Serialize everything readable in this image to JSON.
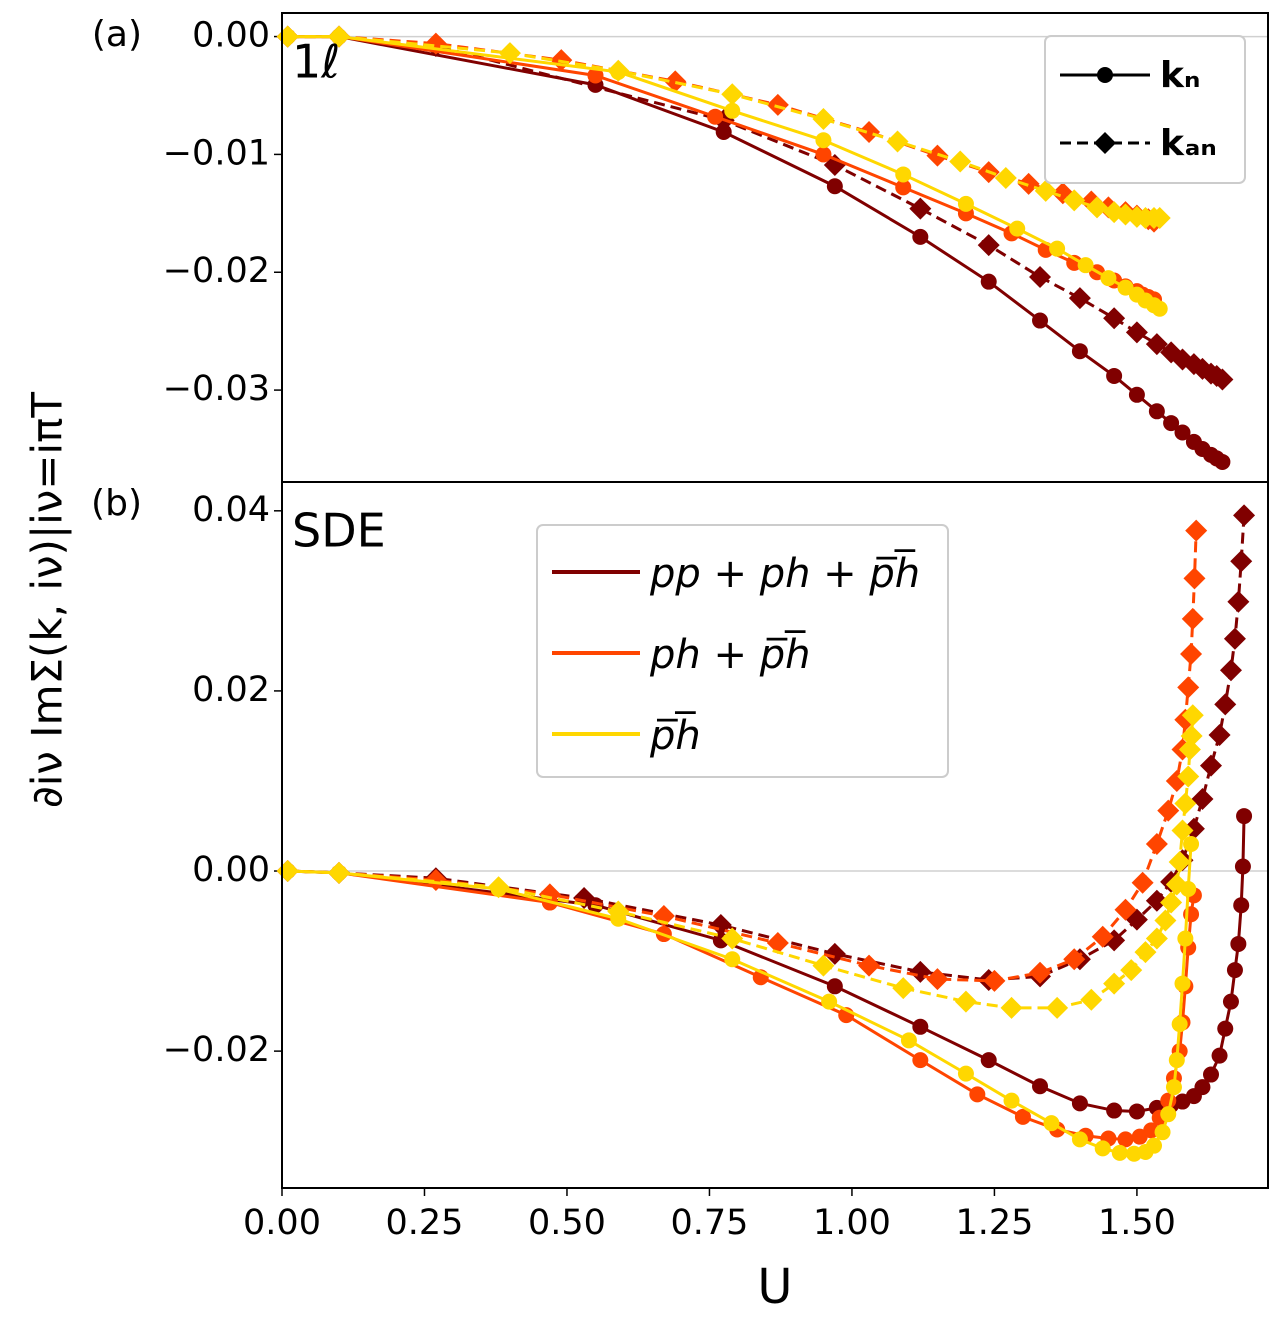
{
  "chart_data": [
    {
      "type": "line",
      "panel_label": "(a)",
      "annotation": "1ℓ",
      "ylabel": "∂iν ImΣ(k, iν)|iν=iπT",
      "xlim": [
        0,
        1.73
      ],
      "ylim": [
        -0.0378,
        0.002
      ],
      "yticks": [
        {
          "value": 0,
          "label": "0.00"
        },
        {
          "value": -0.01,
          "label": "−0.01"
        },
        {
          "value": -0.02,
          "label": "−0.02"
        },
        {
          "value": -0.03,
          "label": "−0.03"
        }
      ],
      "hline": 0,
      "legend": [
        {
          "label": "kₙ",
          "line": "solid",
          "marker": "circle"
        },
        {
          "label": "kₐₙ",
          "line": "dashed",
          "marker": "diamond"
        }
      ],
      "series": [
        {
          "color": "#800000",
          "line": "solid",
          "marker": "circle",
          "x": [
            0.01,
            0.1,
            0.55,
            0.775,
            0.97,
            1.12,
            1.24,
            1.33,
            1.4,
            1.46,
            1.5,
            1.535,
            1.56,
            1.58,
            1.6,
            1.615,
            1.63,
            1.64,
            1.65
          ],
          "values": [
            0,
            0,
            -0.0041,
            -0.0081,
            -0.0127,
            -0.017,
            -0.0208,
            -0.0241,
            -0.0267,
            -0.0288,
            -0.0304,
            -0.0318,
            -0.0328,
            -0.0336,
            -0.0344,
            -0.035,
            -0.0355,
            -0.0358,
            -0.0361
          ]
        },
        {
          "color": "#800000",
          "line": "dashed",
          "marker": "diamond",
          "x": [
            0.01,
            0.1,
            0.27,
            0.775,
            0.97,
            1.12,
            1.24,
            1.33,
            1.4,
            1.46,
            1.5,
            1.535,
            1.56,
            1.58,
            1.6,
            1.615,
            1.63,
            1.64,
            1.65
          ],
          "values": [
            0,
            0,
            -0.0008,
            -0.0071,
            -0.0109,
            -0.0146,
            -0.0177,
            -0.0204,
            -0.0222,
            -0.0239,
            -0.0251,
            -0.0261,
            -0.0268,
            -0.0274,
            -0.0278,
            -0.0282,
            -0.0286,
            -0.0288,
            -0.0291
          ]
        },
        {
          "color": "#ff4500",
          "line": "solid",
          "marker": "circle",
          "x": [
            0.01,
            0.1,
            0.55,
            0.76,
            0.95,
            1.09,
            1.2,
            1.28,
            1.34,
            1.39,
            1.43,
            1.46,
            1.48,
            1.5,
            1.51,
            1.52,
            1.53
          ],
          "values": [
            0,
            0,
            -0.0033,
            -0.0068,
            -0.01,
            -0.0128,
            -0.015,
            -0.0167,
            -0.0181,
            -0.0192,
            -0.02,
            -0.0207,
            -0.0212,
            -0.0216,
            -0.0219,
            -0.0221,
            -0.0223
          ]
        },
        {
          "color": "#ff4500",
          "line": "dashed",
          "marker": "diamond",
          "x": [
            0.01,
            0.1,
            0.27,
            0.49,
            0.69,
            0.87,
            1.03,
            1.15,
            1.24,
            1.31,
            1.37,
            1.42,
            1.45,
            1.48,
            1.5,
            1.52,
            1.53
          ],
          "values": [
            0,
            0,
            -0.0006,
            -0.002,
            -0.0038,
            -0.0058,
            -0.0081,
            -0.0101,
            -0.0115,
            -0.0125,
            -0.0133,
            -0.014,
            -0.0145,
            -0.0149,
            -0.0152,
            -0.0155,
            -0.0157
          ]
        },
        {
          "color": "#ffd700",
          "line": "solid",
          "marker": "circle",
          "x": [
            0.01,
            0.1,
            0.59,
            0.79,
            0.95,
            1.09,
            1.2,
            1.29,
            1.36,
            1.41,
            1.45,
            1.48,
            1.5,
            1.515,
            1.53,
            1.54
          ],
          "values": [
            0,
            0,
            -0.003,
            -0.0063,
            -0.0088,
            -0.0117,
            -0.0142,
            -0.0163,
            -0.018,
            -0.0194,
            -0.0205,
            -0.0213,
            -0.0219,
            -0.0224,
            -0.0228,
            -0.0231
          ]
        },
        {
          "color": "#ffd700",
          "line": "dashed",
          "marker": "diamond",
          "x": [
            0.01,
            0.1,
            0.4,
            0.59,
            0.79,
            0.95,
            1.08,
            1.19,
            1.27,
            1.34,
            1.39,
            1.43,
            1.46,
            1.48,
            1.5,
            1.515,
            1.53,
            1.54
          ],
          "values": [
            0,
            0,
            -0.0014,
            -0.0029,
            -0.0049,
            -0.007,
            -0.0089,
            -0.0106,
            -0.012,
            -0.0131,
            -0.0139,
            -0.0145,
            -0.0149,
            -0.0151,
            -0.0153,
            -0.0154,
            -0.0154,
            -0.0154
          ]
        }
      ]
    },
    {
      "type": "line",
      "panel_label": "(b)",
      "annotation": "SDE",
      "xlabel": "U",
      "xlim": [
        0,
        1.73
      ],
      "ylim": [
        -0.0352,
        0.0432
      ],
      "xticks": [
        {
          "value": 0,
          "label": "0.00"
        },
        0.25,
        {
          "value": 0.5,
          "label": "0.50"
        },
        0.75,
        {
          "value": 1,
          "label": "1.00"
        },
        1.25,
        {
          "value": 1.5,
          "label": "1.50"
        }
      ],
      "yticks": [
        {
          "value": 0.04,
          "label": "0.04"
        },
        {
          "value": 0.02,
          "label": "0.02"
        },
        {
          "value": 0,
          "label": "0.00"
        },
        {
          "value": -0.02,
          "label": "−0.02"
        }
      ],
      "hline": 0,
      "legend": [
        {
          "label": "pp + ph + p̅h̅",
          "color": "#800000"
        },
        {
          "label": "ph + p̅h̅",
          "color": "#ff4500"
        },
        {
          "label": "p̅h̅",
          "color": "#ffd700"
        }
      ],
      "series": [
        {
          "color": "#800000",
          "line": "solid",
          "marker": "circle",
          "x": [
            0.01,
            0.1,
            0.55,
            0.77,
            0.97,
            1.12,
            1.24,
            1.33,
            1.4,
            1.46,
            1.5,
            1.535,
            1.56,
            1.58,
            1.6,
            1.615,
            1.63,
            1.645,
            1.655,
            1.665,
            1.672,
            1.678,
            1.683,
            1.686,
            1.688
          ],
          "values": [
            0,
            -0.0002,
            -0.0038,
            -0.0077,
            -0.0128,
            -0.0173,
            -0.021,
            -0.0239,
            -0.0258,
            -0.0266,
            -0.0267,
            -0.0263,
            -0.026,
            -0.0256,
            -0.025,
            -0.024,
            -0.0226,
            -0.0205,
            -0.0175,
            -0.0145,
            -0.011,
            -0.0081,
            -0.0038,
            0.0005,
            0.0061
          ]
        },
        {
          "color": "#800000",
          "line": "dashed",
          "marker": "diamond",
          "x": [
            0.01,
            0.1,
            0.27,
            0.53,
            0.77,
            0.97,
            1.12,
            1.24,
            1.33,
            1.4,
            1.46,
            1.5,
            1.535,
            1.56,
            1.58,
            1.6,
            1.615,
            1.63,
            1.645,
            1.655,
            1.665,
            1.672,
            1.678,
            1.683,
            1.688
          ],
          "values": [
            0,
            -0.0002,
            -0.0008,
            -0.003,
            -0.006,
            -0.0092,
            -0.0112,
            -0.0121,
            -0.0117,
            -0.0098,
            -0.0077,
            -0.0054,
            -0.0033,
            -0.0012,
            0.0012,
            0.0047,
            0.008,
            0.0117,
            0.0151,
            0.0185,
            0.0223,
            0.0258,
            0.0299,
            0.0344,
            0.0395
          ]
        },
        {
          "color": "#ff4500",
          "line": "solid",
          "marker": "circle",
          "x": [
            0.01,
            0.1,
            0.47,
            0.67,
            0.84,
            0.99,
            1.12,
            1.22,
            1.3,
            1.36,
            1.41,
            1.45,
            1.48,
            1.505,
            1.525,
            1.54,
            1.555,
            1.565,
            1.575,
            1.58,
            1.585,
            1.59,
            1.595,
            1.6
          ],
          "values": [
            0,
            -0.0002,
            -0.0035,
            -0.007,
            -0.0118,
            -0.016,
            -0.021,
            -0.0248,
            -0.0273,
            -0.0287,
            -0.0294,
            -0.0297,
            -0.0298,
            -0.0295,
            -0.0288,
            -0.0274,
            -0.0255,
            -0.023,
            -0.02,
            -0.0168,
            -0.0128,
            -0.0085,
            -0.0048,
            -0.0027
          ]
        },
        {
          "color": "#ff4500",
          "line": "dashed",
          "marker": "diamond",
          "x": [
            0.01,
            0.1,
            0.27,
            0.47,
            0.67,
            0.87,
            1.03,
            1.15,
            1.25,
            1.33,
            1.39,
            1.44,
            1.48,
            1.51,
            1.535,
            1.555,
            1.57,
            1.58,
            1.585,
            1.59,
            1.595,
            1.598,
            1.601,
            1.604
          ],
          "values": [
            0,
            -0.0002,
            -0.001,
            -0.0026,
            -0.005,
            -0.008,
            -0.0105,
            -0.012,
            -0.0122,
            -0.0113,
            -0.0098,
            -0.0073,
            -0.0043,
            -0.0013,
            0.003,
            0.0067,
            0.01,
            0.0135,
            0.0168,
            0.0204,
            0.0241,
            0.028,
            0.0325,
            0.0378
          ]
        },
        {
          "color": "#ffd700",
          "line": "solid",
          "marker": "circle",
          "x": [
            0.01,
            0.1,
            0.38,
            0.59,
            0.79,
            0.96,
            1.1,
            1.2,
            1.28,
            1.35,
            1.4,
            1.44,
            1.47,
            1.495,
            1.515,
            1.53,
            1.545,
            1.555,
            1.565,
            1.57,
            1.575,
            1.58,
            1.585,
            1.59,
            1.595
          ],
          "values": [
            0,
            -0.0002,
            -0.002,
            -0.0053,
            -0.0098,
            -0.0145,
            -0.0188,
            -0.0225,
            -0.0255,
            -0.028,
            -0.0298,
            -0.0308,
            -0.0313,
            -0.0314,
            -0.0312,
            -0.0305,
            -0.029,
            -0.027,
            -0.024,
            -0.021,
            -0.017,
            -0.0125,
            -0.0075,
            -0.002,
            0.003
          ]
        },
        {
          "color": "#ffd700",
          "line": "dashed",
          "marker": "diamond",
          "x": [
            0.01,
            0.1,
            0.38,
            0.59,
            0.79,
            0.95,
            1.09,
            1.2,
            1.28,
            1.36,
            1.42,
            1.46,
            1.49,
            1.515,
            1.535,
            1.55,
            1.56,
            1.57,
            1.575,
            1.58,
            1.585,
            1.59,
            1.593,
            1.596,
            1.598
          ],
          "values": [
            0,
            -0.0002,
            -0.0018,
            -0.0045,
            -0.0075,
            -0.0105,
            -0.013,
            -0.0145,
            -0.0152,
            -0.0152,
            -0.0143,
            -0.0125,
            -0.011,
            -0.009,
            -0.0075,
            -0.0055,
            -0.0035,
            -0.0015,
            0.001,
            0.0045,
            0.0075,
            0.0105,
            0.0135,
            0.015,
            0.0173
          ]
        }
      ]
    }
  ]
}
